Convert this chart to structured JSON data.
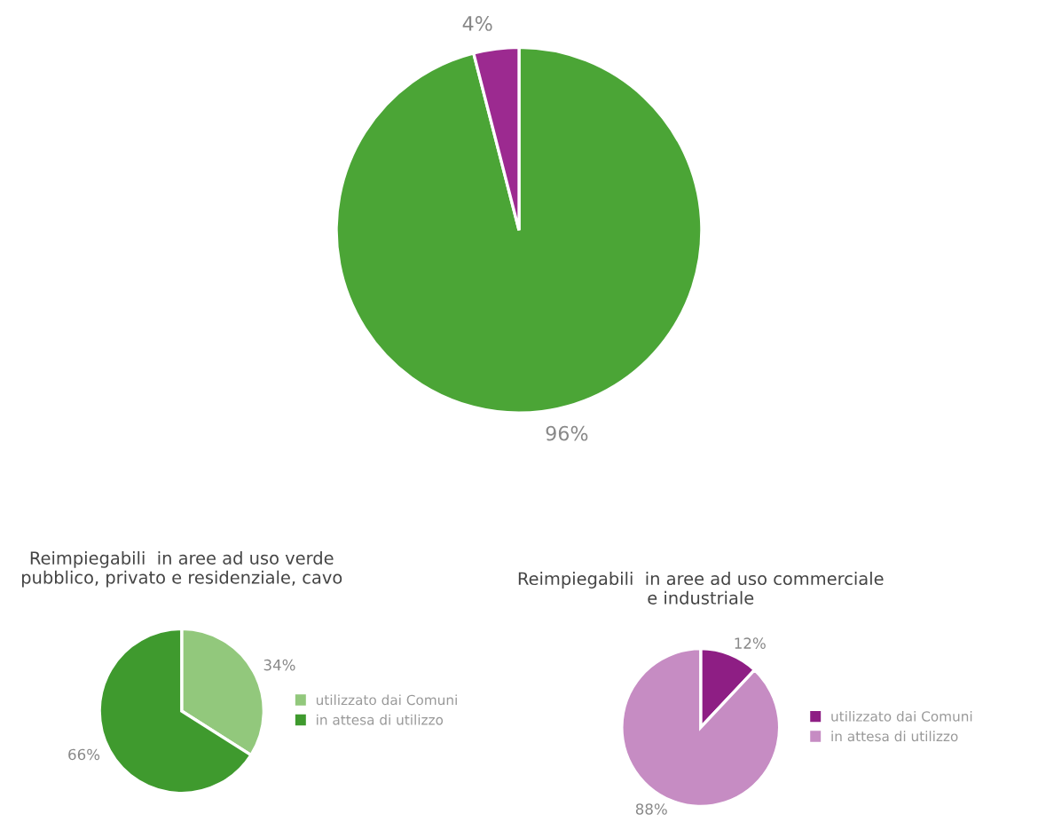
{
  "chart_data": [
    {
      "type": "pie",
      "categories": [
        null,
        null
      ],
      "values": [
        96,
        4
      ],
      "colors": [
        "#4ba536",
        "#9c2a90"
      ],
      "value_labels": [
        "96%",
        "4%"
      ],
      "legend": false
    },
    {
      "type": "pie",
      "title": "Reimpiegabili  in aree ad uso verde\npubblico, privato e residenziale, cavo",
      "categories": [
        "utilizzato dai Comuni",
        "in attesa di utilizzo"
      ],
      "values": [
        34,
        66
      ],
      "colors": [
        "#92c87c",
        "#3f9a2e"
      ],
      "value_labels": [
        "34%",
        "66%"
      ],
      "legend": "right"
    },
    {
      "type": "pie",
      "title": "Reimpiegabili  in aree ad uso commerciale\ne industriale",
      "categories": [
        "utilizzato dai Comuni",
        "in attesa di utilizzo"
      ],
      "values": [
        12,
        88
      ],
      "colors": [
        "#8e1e84",
        "#c68cc3"
      ],
      "value_labels": [
        "12%",
        "88%"
      ],
      "legend": "right"
    }
  ]
}
